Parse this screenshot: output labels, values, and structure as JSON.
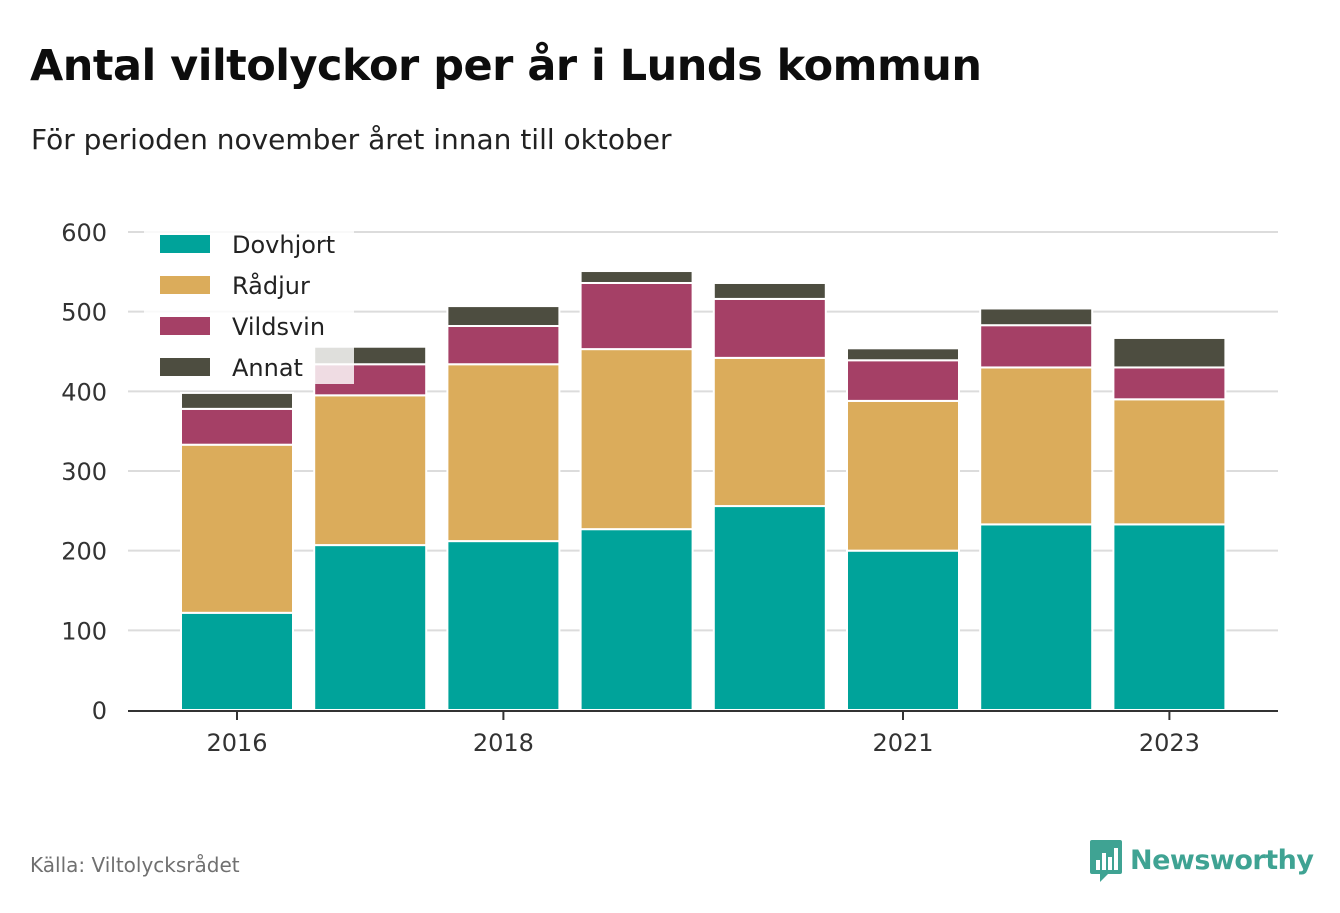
{
  "header": {
    "title": "Antal viltolyckor per år i Lunds kommun",
    "subtitle": "För perioden november året innan till oktober"
  },
  "footer": {
    "source": "Källa: Viltolycksrådet",
    "brand": "Newsworthy"
  },
  "colors": {
    "Dovhjort": "#00a39a",
    "Rådjur": "#dbac5b",
    "Vildsvin": "#a54066",
    "Annat": "#4d4d40",
    "grid": "#dcdcdc",
    "axis": "#333333",
    "tick_text": "#333333",
    "brand": "#3fa393"
  },
  "chart_data": {
    "type": "bar",
    "stacked": true,
    "categories": [
      "2016",
      "2017",
      "2018",
      "2019",
      "2020",
      "2021",
      "2022",
      "2023"
    ],
    "x_tick_labels": [
      "2016",
      "2018",
      "2021",
      "2023"
    ],
    "series": [
      {
        "name": "Dovhjort",
        "values": [
          122,
          207,
          212,
          227,
          256,
          200,
          233,
          233
        ]
      },
      {
        "name": "Rådjur",
        "values": [
          211,
          188,
          222,
          226,
          186,
          188,
          197,
          157
        ]
      },
      {
        "name": "Vildsvin",
        "values": [
          45,
          39,
          48,
          83,
          74,
          51,
          53,
          40
        ]
      },
      {
        "name": "Annat",
        "values": [
          20,
          22,
          25,
          15,
          20,
          15,
          21,
          37
        ]
      }
    ],
    "y_ticks": [
      0,
      100,
      200,
      300,
      400,
      500,
      600
    ],
    "ylim": [
      0,
      600
    ],
    "grid": true,
    "legend_position": "top-left",
    "xlabel": "",
    "ylabel": ""
  }
}
